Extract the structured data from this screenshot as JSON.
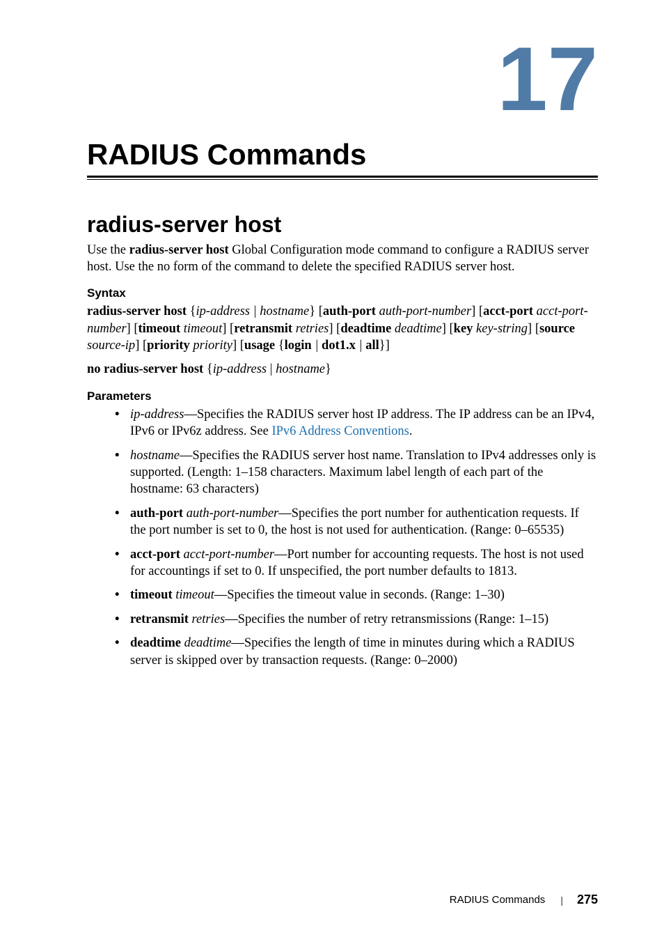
{
  "chapter": {
    "number": "17",
    "number_color": "#507ba6",
    "number_fontsize": 130,
    "title": "RADIUS Commands",
    "title_fontsize": 42
  },
  "section": {
    "title": "radius-server host",
    "intro": "Use the <b>radius-server host</b> Global Configuration mode command to configure a RADIUS server host. Use the no form of the command to delete the specified RADIUS server host."
  },
  "syntax": {
    "heading": "Syntax",
    "lines": [
      "<b>radius-server host</b> {<i>ip-address | hostname</i>} [<b>auth-port</b> <i>auth-port-number</i>] [<b>acct-port</b> <i>acct-port-number</i>] [<b>timeout</b> <i>timeout</i>] [<b>retransmit</b> <i>retries</i>] [<b>deadtime</b> <i>deadtime</i>] [<b>key</b> <i>key-string</i>] [<b>source</b> <i>source-ip</i>] [<b>priority</b> <i>priority</i>] [<b>usage</b> {<b>login</b> <i>|</i> <b>dot1.x</b> <i>|</i> <b>all</b>}]",
      "<b>no radius-server host</b> {<i>ip-address</i> | <i>hostname</i>}"
    ]
  },
  "parameters": {
    "heading": "Parameters",
    "items": [
      "<i>ip-address</i>—Specifies the RADIUS server host IP address. The IP address can be an IPv4, IPv6 or IPv6z address. See <span class=\"link\">IPv6 Address Conventions</span>.",
      "<i>hostname</i>—Specifies the RADIUS server host name. Translation to IPv4 addresses only is supported. (Length: 1–158 characters. Maximum label length of each part of the hostname: 63 characters)",
      "<b>auth-port</b> <i>auth-port-number</i>—Specifies the port number for authentication requests. If the port number is set to 0, the host is not used for authentication. (Range: 0–65535)",
      "<b>acct-port</b> <i>acct-port-number</i>—Port number for accounting requests. The host is not used for accountings if set to 0. If unspecified, the port number defaults to 1813.",
      "<b>timeout</b> <i>timeout</i>—Specifies the timeout value in seconds. (Range: 1–30)",
      "<b>retransmit</b> <i>retries</i>—Specifies the number of retry retransmissions (Range: 1–15)",
      "<b>deadtime</b> <i>deadtime</i>—Specifies the length of time in minutes during which a RADIUS server is skipped over by transaction requests. (Range: 0–2000)"
    ]
  },
  "footer": {
    "label": "RADIUS Commands",
    "page": "275"
  },
  "colors": {
    "accent": "#507ba6",
    "link": "#1a6fb0",
    "text": "#000000",
    "background": "#ffffff"
  }
}
